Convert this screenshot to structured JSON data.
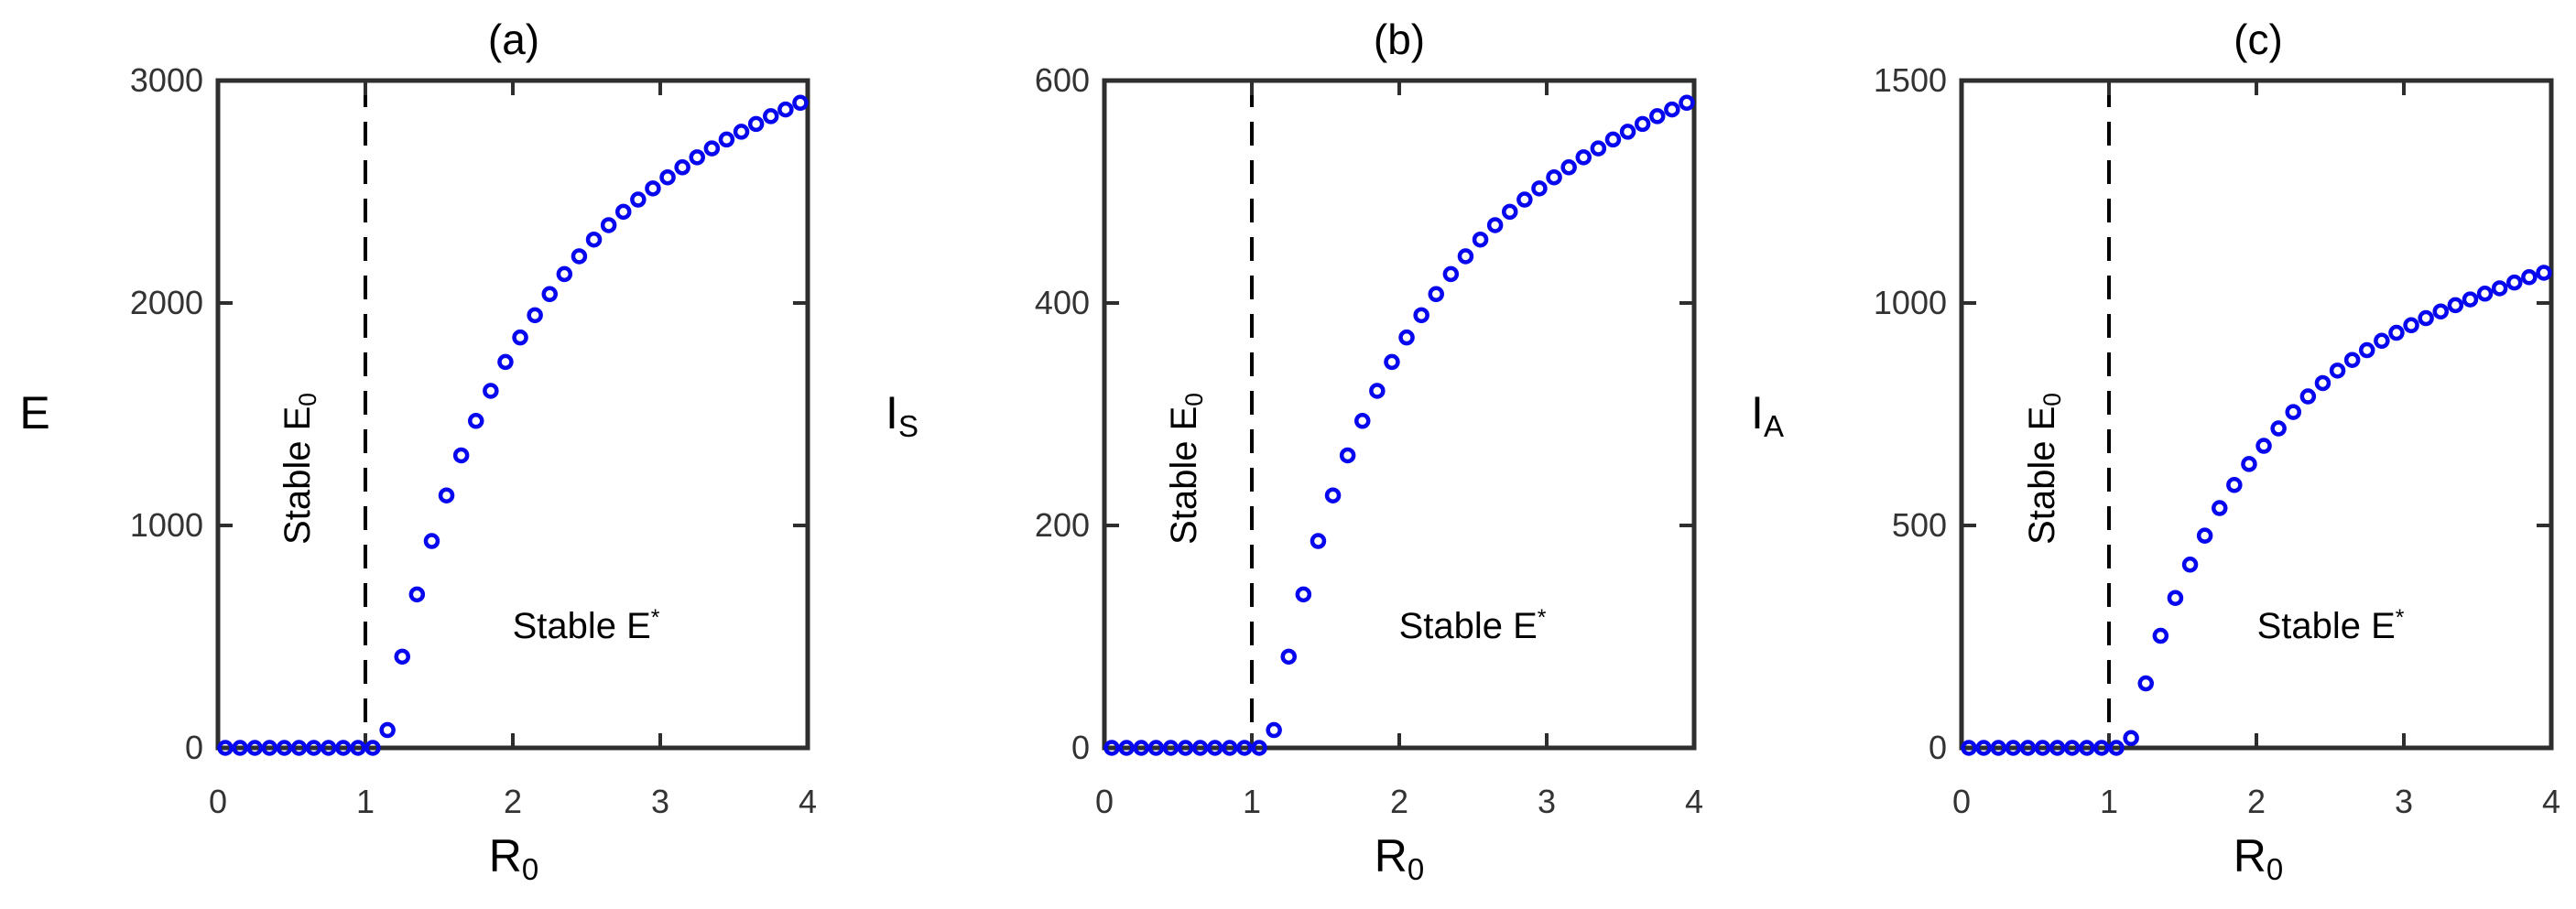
{
  "figure": {
    "background": "#ffffff",
    "marker_color": "#0606ef",
    "axis_color": "#2e2e2e",
    "tick_label_color": "#333333",
    "annotation_color": "#000000",
    "dashed_line_color": "#000000"
  },
  "chart_data": [
    {
      "type": "scatter",
      "title": "(a)",
      "xlabel_main": "R",
      "xlabel_sub": "0",
      "ylabel_main": "E",
      "ylabel_sub": "",
      "annotation_left_main": "Stable E",
      "annotation_left_sub": "0",
      "annotation_right_main": "Stable E",
      "annotation_right_sup": "*",
      "xlim": [
        0,
        4
      ],
      "ylim": [
        0,
        3000
      ],
      "x_ticks": [
        0,
        1,
        2,
        3,
        4
      ],
      "y_ticks": [
        0,
        1000,
        2000,
        3000
      ],
      "dashed_vline_x": 1,
      "marker": "open-circle",
      "legend": null,
      "grid": false,
      "x": [
        0.05,
        0.15,
        0.25,
        0.35,
        0.45,
        0.55,
        0.65,
        0.75,
        0.85,
        0.95,
        1.05,
        1.15,
        1.25,
        1.35,
        1.45,
        1.55,
        1.65,
        1.75,
        1.85,
        1.95,
        2.05,
        2.15,
        2.25,
        2.35,
        2.45,
        2.55,
        2.65,
        2.75,
        2.85,
        2.95,
        3.05,
        3.15,
        3.25,
        3.35,
        3.45,
        3.55,
        3.65,
        3.75,
        3.85,
        3.95
      ],
      "y": [
        0,
        0,
        0,
        0,
        0,
        0,
        0,
        0,
        0,
        0,
        0,
        80,
        410,
        690,
        930,
        1135,
        1315,
        1470,
        1605,
        1735,
        1845,
        1945,
        2040,
        2130,
        2210,
        2285,
        2350,
        2410,
        2465,
        2515,
        2565,
        2610,
        2655,
        2695,
        2735,
        2770,
        2805,
        2840,
        2870,
        2900
      ]
    },
    {
      "type": "scatter",
      "title": "(b)",
      "xlabel_main": "R",
      "xlabel_sub": "0",
      "ylabel_main": "I",
      "ylabel_sub": "S",
      "annotation_left_main": "Stable E",
      "annotation_left_sub": "0",
      "annotation_right_main": "Stable E",
      "annotation_right_sup": "*",
      "xlim": [
        0,
        4
      ],
      "ylim": [
        0,
        600
      ],
      "x_ticks": [
        0,
        1,
        2,
        3,
        4
      ],
      "y_ticks": [
        0,
        200,
        400,
        600
      ],
      "dashed_vline_x": 1,
      "marker": "open-circle",
      "legend": null,
      "grid": false,
      "x": [
        0.05,
        0.15,
        0.25,
        0.35,
        0.45,
        0.55,
        0.65,
        0.75,
        0.85,
        0.95,
        1.05,
        1.15,
        1.25,
        1.35,
        1.45,
        1.55,
        1.65,
        1.75,
        1.85,
        1.95,
        2.05,
        2.15,
        2.25,
        2.35,
        2.45,
        2.55,
        2.65,
        2.75,
        2.85,
        2.95,
        3.05,
        3.15,
        3.25,
        3.35,
        3.45,
        3.55,
        3.65,
        3.75,
        3.85,
        3.95
      ],
      "y": [
        0,
        0,
        0,
        0,
        0,
        0,
        0,
        0,
        0,
        0,
        0,
        16,
        82,
        138,
        186,
        227,
        263,
        294,
        321,
        347,
        369,
        389,
        408,
        426,
        442,
        457,
        470,
        482,
        493,
        503,
        513,
        522,
        531,
        539,
        547,
        554,
        561,
        568,
        574,
        580
      ]
    },
    {
      "type": "scatter",
      "title": "(c)",
      "xlabel_main": "R",
      "xlabel_sub": "0",
      "ylabel_main": "I",
      "ylabel_sub": "A",
      "annotation_left_main": "Stable E",
      "annotation_left_sub": "0",
      "annotation_right_main": "Stable E",
      "annotation_right_sup": "*",
      "xlim": [
        0,
        4
      ],
      "ylim": [
        0,
        1500
      ],
      "x_ticks": [
        0,
        1,
        2,
        3,
        4
      ],
      "y_ticks": [
        0,
        500,
        1000,
        1500
      ],
      "dashed_vline_x": 1,
      "marker": "open-circle",
      "legend": null,
      "grid": false,
      "x": [
        0.05,
        0.15,
        0.25,
        0.35,
        0.45,
        0.55,
        0.65,
        0.75,
        0.85,
        0.95,
        1.05,
        1.15,
        1.25,
        1.35,
        1.45,
        1.55,
        1.65,
        1.75,
        1.85,
        1.95,
        2.05,
        2.15,
        2.25,
        2.35,
        2.45,
        2.55,
        2.65,
        2.75,
        2.85,
        2.95,
        3.05,
        3.15,
        3.25,
        3.35,
        3.45,
        3.55,
        3.65,
        3.75,
        3.85,
        3.95
      ],
      "y": [
        0,
        0,
        0,
        0,
        0,
        0,
        0,
        0,
        0,
        0,
        0,
        22,
        145,
        252,
        337,
        412,
        477,
        539,
        591,
        638,
        679,
        718,
        755,
        790,
        820,
        848,
        872,
        894,
        915,
        933,
        950,
        966,
        981,
        995,
        1008,
        1021,
        1033,
        1046,
        1058,
        1068
      ]
    }
  ]
}
